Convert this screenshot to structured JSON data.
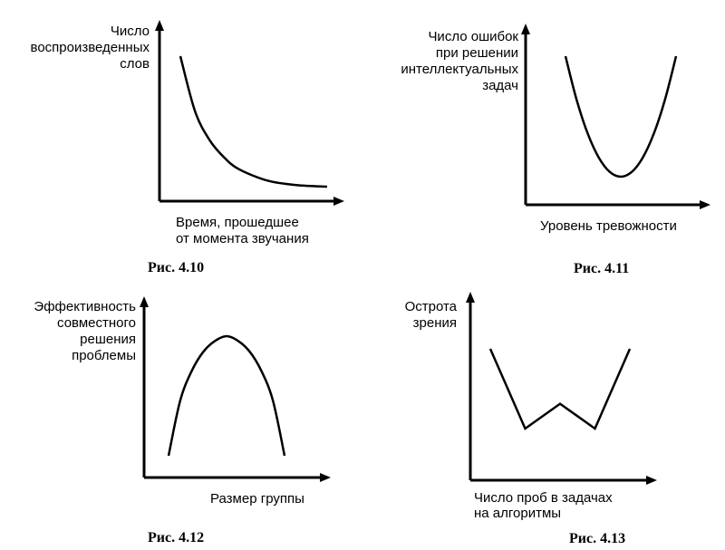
{
  "chart_data": [
    {
      "type": "line",
      "caption": "Рис. 4.10",
      "ylabel": [
        "Число",
        "воспроизведенных",
        "слов"
      ],
      "xlabel": [
        "Время, прошедшее",
        "от момента звучания"
      ],
      "x": [
        0,
        1,
        2,
        3,
        4,
        6,
        8,
        10
      ],
      "values": [
        100,
        62,
        42,
        30,
        22,
        14,
        11,
        10
      ]
    },
    {
      "type": "line",
      "caption": "Рис. 4.11",
      "ylabel": [
        "Число ошибок",
        "при решении",
        "интеллектуальных",
        "задач"
      ],
      "xlabel": [
        "Уровень тревожности"
      ],
      "x": [
        0,
        1,
        2,
        3,
        4,
        5,
        6,
        7,
        8,
        9,
        10
      ],
      "values": [
        100,
        64,
        36,
        16,
        4,
        0,
        4,
        16,
        36,
        64,
        100
      ]
    },
    {
      "type": "line",
      "caption": "Рис. 4.12",
      "ylabel": [
        "Эффективность",
        "совместного",
        "решения",
        "проблемы"
      ],
      "xlabel": [
        "Размер группы"
      ],
      "x": [
        0,
        1,
        2,
        3,
        4,
        5,
        6,
        7,
        8,
        9,
        10
      ],
      "values": [
        0,
        46,
        71,
        87,
        96,
        100,
        96,
        87,
        71,
        46,
        0
      ]
    },
    {
      "type": "line",
      "caption": "Рис. 4.13",
      "ylabel": [
        "Острота",
        "зрения"
      ],
      "xlabel": [
        "Число проб в задачах",
        "на алгоритмы"
      ],
      "x": [
        0,
        1,
        2,
        3,
        4
      ],
      "values": [
        100,
        10,
        38,
        10,
        100
      ]
    }
  ]
}
